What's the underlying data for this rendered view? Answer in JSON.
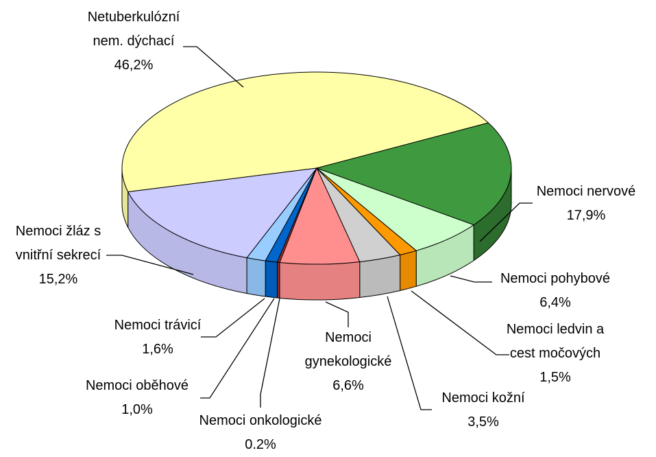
{
  "chart_data": {
    "type": "pie",
    "categories": [
      "Netuberkulózní\nnem. dýchací",
      "Nemoci nervové",
      "Nemoci pohybové",
      "Nemoci ledvin a\ncest močových",
      "Nemoci kožní",
      "Nemoci\ngynekologické",
      "Nemoci onkologické",
      "Nemoci oběhové",
      "Nemoci trávicí",
      "Nemoci žláz s\nvnitřní sekrecí"
    ],
    "values": [
      46.2,
      17.9,
      6.4,
      1.5,
      3.5,
      6.6,
      0.2,
      1.0,
      1.6,
      15.2
    ],
    "value_labels": [
      "46,2%",
      "17,9%",
      "6,4%",
      "1,5%",
      "3,5%",
      "6,6%",
      "0.2%",
      "1,0%",
      "1,6%",
      "15,2%"
    ],
    "colors": [
      "#ffffa8",
      "#3f9a3f",
      "#ccffcc",
      "#ff9900",
      "#d0d0d0",
      "#ff8f8f",
      "#a03030",
      "#0066cc",
      "#99ccff",
      "#ccccff"
    ]
  }
}
